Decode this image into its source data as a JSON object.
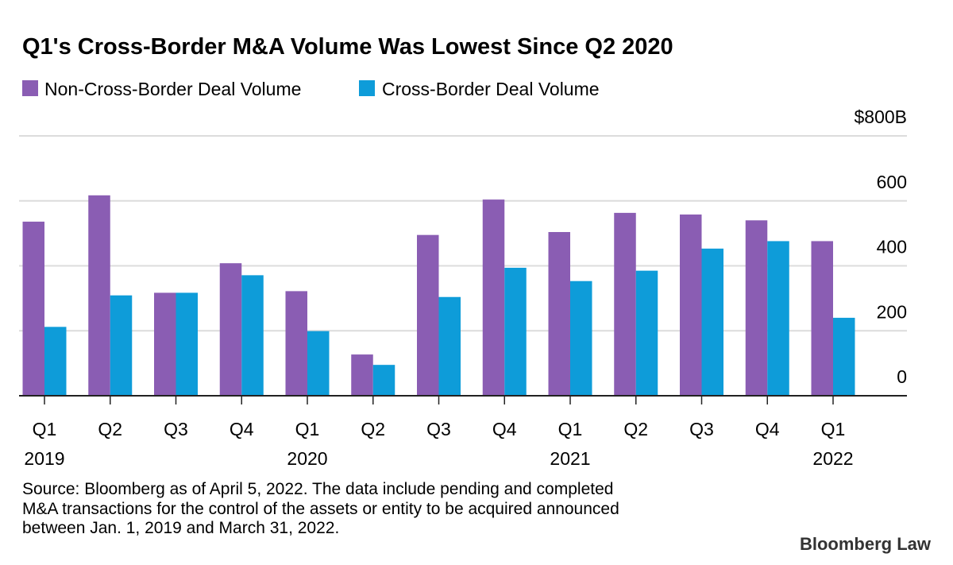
{
  "chart_data": {
    "type": "bar",
    "title": "Q1's Cross-Border M&A Volume Was Lowest Since Q2 2020",
    "categories": [
      "Q1",
      "Q2",
      "Q3",
      "Q4",
      "Q1",
      "Q2",
      "Q3",
      "Q4",
      "Q1",
      "Q2",
      "Q3",
      "Q4",
      "Q1"
    ],
    "year_labels": [
      "2019",
      "",
      "",
      "",
      "2020",
      "",
      "",
      "",
      "2021",
      "",
      "",
      "",
      "2022"
    ],
    "series": [
      {
        "name": "Non-Cross-Border Deal Volume",
        "color": "#8a5db3",
        "values": [
          536,
          617,
          317,
          408,
          322,
          127,
          495,
          604,
          504,
          563,
          558,
          540,
          476
        ]
      },
      {
        "name": "Cross-Border Deal Volume",
        "color": "#0e9cd9",
        "values": [
          212,
          309,
          317,
          371,
          199,
          95,
          304,
          394,
          353,
          385,
          453,
          476,
          240
        ]
      }
    ],
    "yticks": [
      "0",
      "200",
      "400",
      "600",
      "$800B"
    ],
    "ytick_values": [
      0,
      200,
      400,
      600,
      800
    ],
    "ylim": [
      0,
      800
    ],
    "y_unit": "$B",
    "grid": true,
    "legend_position": "top-left",
    "xlabel": "",
    "ylabel": ""
  },
  "footer": {
    "source_lines": [
      "Source: Bloomberg as of April 5, 2022. The data include pending and completed",
      "M&A transactions for the control of the assets or entity to be acquired announced",
      "between Jan. 1, 2019 and March 31, 2022."
    ],
    "logo": "Bloomberg Law"
  }
}
